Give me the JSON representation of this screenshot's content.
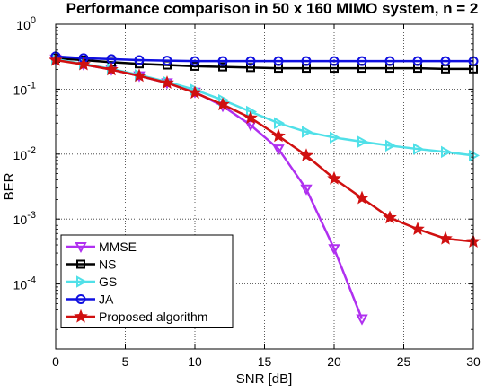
{
  "chart_data": {
    "type": "line",
    "title": "Performance comparison in 50 x 160 MIMO system, n = 2",
    "xlabel": "SNR [dB]",
    "ylabel": "BER",
    "xlim": [
      0,
      30
    ],
    "ylim": [
      1e-05,
      1
    ],
    "y_scale": "log",
    "grid": true,
    "legend_position": "bottom-left",
    "x_ticks": [
      "0",
      "5",
      "10",
      "15",
      "20",
      "25",
      "30"
    ],
    "y_ticks": [
      {
        "base": "10",
        "exp": "0",
        "value": 1
      },
      {
        "base": "10",
        "exp": "-1",
        "value": 0.1
      },
      {
        "base": "10",
        "exp": "-2",
        "value": 0.01
      },
      {
        "base": "10",
        "exp": "-3",
        "value": 0.001
      },
      {
        "base": "10",
        "exp": "-4",
        "value": 0.0001
      }
    ],
    "series": [
      {
        "name": "MMSE",
        "color": "#b030f0",
        "marker": "triangle-down",
        "x": [
          0,
          2,
          4,
          6,
          8,
          10,
          12,
          14,
          16,
          18,
          20,
          22
        ],
        "y": [
          0.29,
          0.24,
          0.2,
          0.16,
          0.125,
          0.09,
          0.055,
          0.028,
          0.012,
          0.0029,
          0.00035,
          2.9e-05
        ]
      },
      {
        "name": "NS",
        "color": "#000000",
        "marker": "square",
        "x": [
          0,
          2,
          4,
          6,
          8,
          10,
          12,
          14,
          16,
          18,
          20,
          22,
          24,
          26,
          28,
          30
        ],
        "y": [
          0.3,
          0.28,
          0.26,
          0.245,
          0.235,
          0.225,
          0.22,
          0.215,
          0.21,
          0.21,
          0.21,
          0.21,
          0.21,
          0.21,
          0.205,
          0.205
        ]
      },
      {
        "name": "GS",
        "color": "#50e0e8",
        "marker": "triangle-right",
        "x": [
          0,
          2,
          4,
          6,
          8,
          10,
          12,
          14,
          16,
          18,
          20,
          22,
          24,
          26,
          28,
          30
        ],
        "y": [
          0.29,
          0.245,
          0.205,
          0.165,
          0.13,
          0.098,
          0.068,
          0.045,
          0.03,
          0.022,
          0.018,
          0.0155,
          0.0135,
          0.012,
          0.0108,
          0.0095
        ]
      },
      {
        "name": "JA",
        "color": "#1010e0",
        "marker": "circle",
        "x": [
          0,
          2,
          4,
          6,
          8,
          10,
          12,
          14,
          16,
          18,
          20,
          22,
          24,
          26,
          28,
          30
        ],
        "y": [
          0.32,
          0.3,
          0.29,
          0.28,
          0.275,
          0.27,
          0.27,
          0.27,
          0.27,
          0.27,
          0.27,
          0.27,
          0.27,
          0.27,
          0.27,
          0.27
        ]
      },
      {
        "name": "Proposed algorithm",
        "color": "#d01010",
        "marker": "star",
        "x": [
          0,
          2,
          4,
          6,
          8,
          10,
          12,
          14,
          16,
          18,
          20,
          22,
          24,
          26,
          28,
          30
        ],
        "y": [
          0.28,
          0.24,
          0.2,
          0.16,
          0.125,
          0.088,
          0.058,
          0.036,
          0.019,
          0.0095,
          0.0042,
          0.0021,
          0.00105,
          0.0007,
          0.0005,
          0.00045
        ]
      }
    ]
  }
}
